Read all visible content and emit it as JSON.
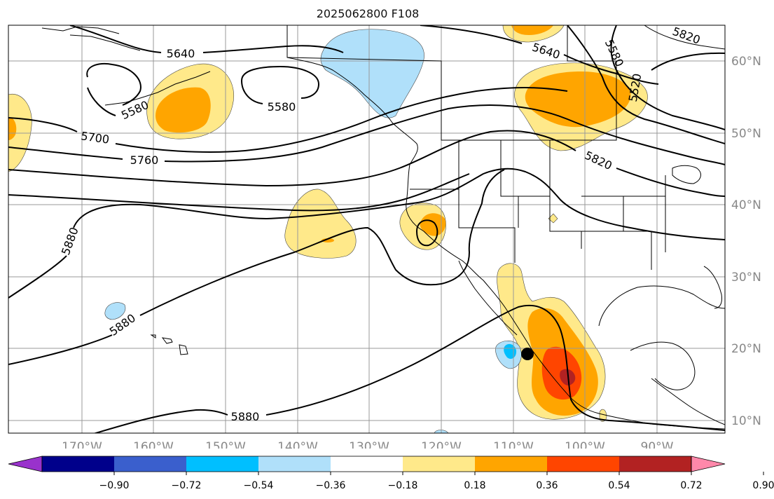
{
  "title": "2025062800 F108",
  "lon_labels": [
    "170°W",
    "160°W",
    "150°W",
    "140°W",
    "130°W",
    "120°W",
    "110°W",
    "100°W",
    "90°W"
  ],
  "lat_labels": [
    "60°N",
    "50°N",
    "40°N",
    "30°N",
    "20°N",
    "10°N"
  ],
  "contour_labels": [
    "5640",
    "5640",
    "5580",
    "5580",
    "5580",
    "5520",
    "5820",
    "5820",
    "5700",
    "5760",
    "5880",
    "5880",
    "5880"
  ],
  "colorbar": {
    "ticks": [
      "−0.90",
      "−0.72",
      "−0.54",
      "−0.36",
      "−0.18",
      "0.18",
      "0.36",
      "0.54",
      "0.72",
      "0.90"
    ],
    "colors": [
      "#9932cc",
      "#00008b",
      "#3a5fcd",
      "#00bfff",
      "#b0e0fa",
      "#ffffff",
      "#ffe98a",
      "#ffa500",
      "#ff4500",
      "#b22222",
      "#ff88aa"
    ]
  },
  "colors": {
    "contour": "#000000",
    "grid": "#999999",
    "coast": "#000000",
    "marker": "#000000"
  }
}
